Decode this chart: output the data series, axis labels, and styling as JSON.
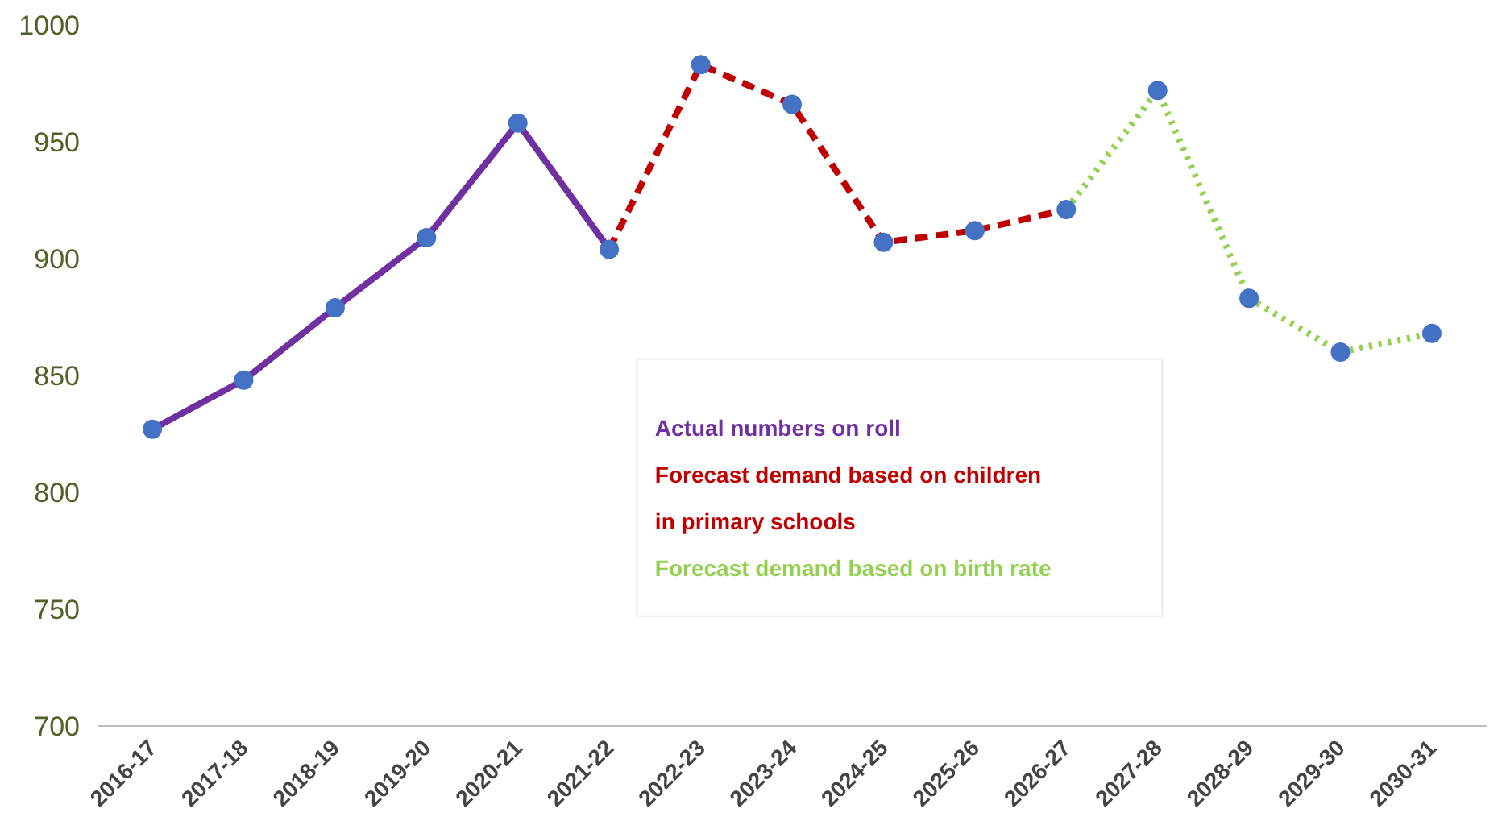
{
  "chart_data": {
    "type": "line",
    "categories": [
      "2016-17",
      "2017-18",
      "2018-19",
      "2019-20",
      "2020-21",
      "2021-22",
      "2022-23",
      "2023-24",
      "2024-25",
      "2025-26",
      "2026-27",
      "2027-28",
      "2028-29",
      "2029-30",
      "2030-31"
    ],
    "series": [
      {
        "name": "Actual numbers on roll",
        "color": "#7030a0",
        "line_style": "solid",
        "values": [
          827,
          848,
          879,
          909,
          958,
          904,
          null,
          null,
          null,
          null,
          null,
          null,
          null,
          null,
          null
        ]
      },
      {
        "name": "Forecast demand based on children in primary schools",
        "color": "#c00000",
        "line_style": "dashed",
        "values": [
          null,
          null,
          null,
          null,
          null,
          904,
          983,
          966,
          907,
          912,
          921,
          null,
          null,
          null,
          null
        ]
      },
      {
        "name": "Forecast demand based on birth rate",
        "color": "#92d050",
        "line_style": "dotted",
        "values": [
          null,
          null,
          null,
          null,
          null,
          null,
          null,
          null,
          null,
          null,
          921,
          972,
          883,
          860,
          868
        ]
      },
      {
        "type": "scatter",
        "color": "#4472c4",
        "marker": "circle",
        "values": [
          827,
          848,
          879,
          909,
          958,
          904,
          983,
          966,
          907,
          912,
          921,
          972,
          883,
          860,
          868
        ]
      }
    ],
    "ylim": [
      700,
      1000
    ],
    "yticks": [
      700,
      750,
      800,
      850,
      900,
      950,
      1000
    ],
    "grid": false,
    "legend": "center",
    "marker": "none"
  }
}
